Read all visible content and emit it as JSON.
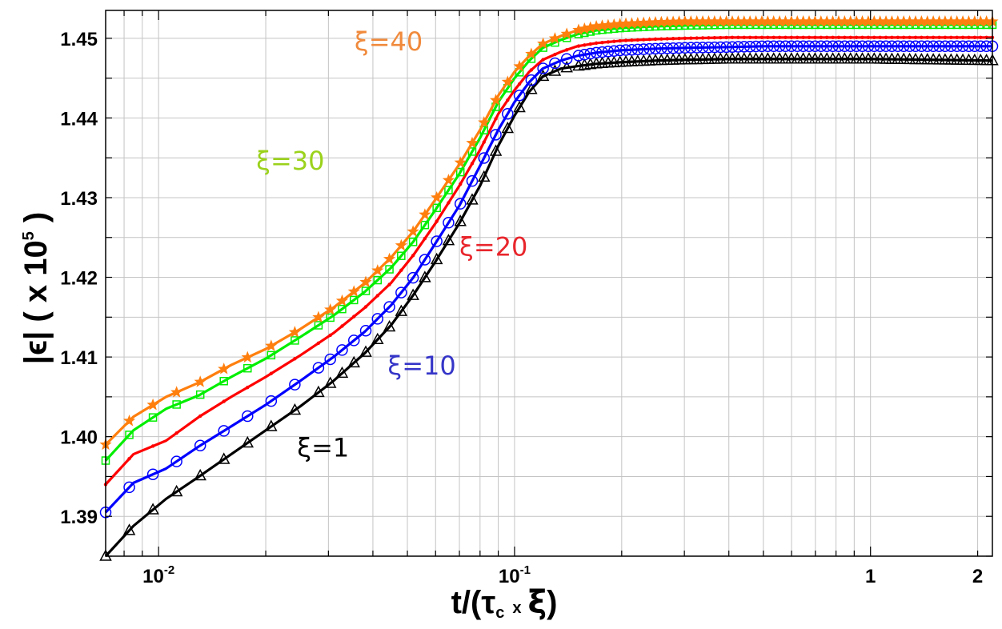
{
  "chart_data": {
    "type": "line",
    "xscale": "log",
    "xlabel": {
      "main": "t/(τ",
      "sub": "c",
      "mult": "x",
      "xi": "ξ",
      "close": ")"
    },
    "ylabel": {
      "main": "|ϵ| ( x 10",
      "sup": "5",
      "close": " )"
    },
    "xlim": [
      0.0071,
      2.2
    ],
    "ylim": [
      1.385,
      1.4535
    ],
    "xticks": [
      {
        "value": 0.01,
        "base": "10",
        "exp": "-2"
      },
      {
        "value": 0.1,
        "base": "10",
        "exp": "-1"
      },
      {
        "value": 1,
        "base": "1",
        "exp": ""
      },
      {
        "value": 2,
        "base": "2",
        "exp": ""
      }
    ],
    "yticks": [
      {
        "value": 1.39,
        "label": "1.39"
      },
      {
        "value": 1.4,
        "label": "1.40"
      },
      {
        "value": 1.41,
        "label": "1.41"
      },
      {
        "value": 1.42,
        "label": "1.42"
      },
      {
        "value": 1.43,
        "label": "1.43"
      },
      {
        "value": 1.44,
        "label": "1.44"
      },
      {
        "value": 1.45,
        "label": "1.45"
      }
    ],
    "series": [
      {
        "name": "ξ=1",
        "label": "ξ=1",
        "color": "#000000",
        "label_color": "#000000",
        "marker": "triangle",
        "label_pos": {
          "x": 0.0245,
          "y": 1.3975
        },
        "x": [
          0.0071,
          0.0085,
          0.0105,
          0.013,
          0.016,
          0.02,
          0.025,
          0.031,
          0.038,
          0.045,
          0.052,
          0.06,
          0.07,
          0.08,
          0.09,
          0.1,
          0.11,
          0.12,
          0.135,
          0.15,
          0.17,
          0.2,
          0.25,
          0.3,
          0.4,
          0.5,
          0.7,
          1.0,
          1.5,
          2.2
        ],
        "values": [
          1.385,
          1.3888,
          1.3922,
          1.395,
          1.3978,
          1.4008,
          1.4038,
          1.407,
          1.4105,
          1.414,
          1.4178,
          1.422,
          1.4268,
          1.4315,
          1.4365,
          1.4403,
          1.4433,
          1.4452,
          1.4462,
          1.4465,
          1.4468,
          1.447,
          1.4472,
          1.4473,
          1.4474,
          1.4474,
          1.4474,
          1.4474,
          1.4473,
          1.4472
        ]
      },
      {
        "name": "ξ=10",
        "label": "ξ=10",
        "color": "#0000ff",
        "label_color": "#3535c8",
        "marker": "circle",
        "label_pos": {
          "x": 0.044,
          "y": 1.4078
        },
        "x": [
          0.0071,
          0.0085,
          0.0105,
          0.013,
          0.016,
          0.02,
          0.025,
          0.031,
          0.038,
          0.045,
          0.052,
          0.06,
          0.07,
          0.08,
          0.09,
          0.1,
          0.11,
          0.12,
          0.135,
          0.15,
          0.17,
          0.2,
          0.25,
          0.3,
          0.4,
          0.5,
          0.7,
          1.0,
          1.5,
          2.2
        ],
        "values": [
          1.3905,
          1.3942,
          1.396,
          1.3988,
          1.4013,
          1.404,
          1.407,
          1.41,
          1.4132,
          1.4165,
          1.42,
          1.4243,
          1.429,
          1.434,
          1.4385,
          1.442,
          1.4445,
          1.4462,
          1.4472,
          1.4478,
          1.4482,
          1.4485,
          1.4487,
          1.4488,
          1.4489,
          1.449,
          1.449,
          1.449,
          1.449,
          1.449
        ]
      },
      {
        "name": "ξ=20",
        "label": "ξ=20",
        "color": "#ff0000",
        "label_color": "#e8262c",
        "marker": "dot",
        "label_pos": {
          "x": 0.07,
          "y": 1.4227
        },
        "x": [
          0.0071,
          0.0085,
          0.0105,
          0.013,
          0.016,
          0.02,
          0.025,
          0.031,
          0.038,
          0.045,
          0.052,
          0.06,
          0.07,
          0.08,
          0.09,
          0.1,
          0.11,
          0.12,
          0.135,
          0.15,
          0.17,
          0.2,
          0.25,
          0.3,
          0.4,
          0.5,
          0.7,
          1.0,
          1.5,
          2.2
        ],
        "values": [
          1.394,
          1.3978,
          1.3995,
          1.4025,
          1.405,
          1.4075,
          1.4102,
          1.413,
          1.4162,
          1.4193,
          1.4228,
          1.4268,
          1.4315,
          1.436,
          1.4405,
          1.4435,
          1.4458,
          1.4473,
          1.4483,
          1.449,
          1.4494,
          1.4497,
          1.4499,
          1.45,
          1.4501,
          1.4501,
          1.4501,
          1.4501,
          1.4501,
          1.4501
        ]
      },
      {
        "name": "ξ=30",
        "label": "ξ=30",
        "color": "#00ee00",
        "label_color": "#9bd21c",
        "marker": "square",
        "label_pos": {
          "x": 0.0188,
          "y": 1.4335
        },
        "x": [
          0.0071,
          0.0085,
          0.0105,
          0.013,
          0.016,
          0.02,
          0.025,
          0.031,
          0.038,
          0.045,
          0.052,
          0.06,
          0.07,
          0.08,
          0.09,
          0.1,
          0.11,
          0.12,
          0.135,
          0.15,
          0.17,
          0.2,
          0.25,
          0.3,
          0.4,
          0.5,
          0.7,
          1.0,
          1.5,
          2.2
        ],
        "values": [
          1.397,
          1.4008,
          1.4035,
          1.4052,
          1.4075,
          1.4098,
          1.4125,
          1.4152,
          1.4182,
          1.4212,
          1.4245,
          1.4285,
          1.433,
          1.4375,
          1.442,
          1.445,
          1.4472,
          1.4488,
          1.4498,
          1.4505,
          1.451,
          1.4513,
          1.4515,
          1.4516,
          1.4517,
          1.4517,
          1.4517,
          1.4517,
          1.4517,
          1.4517
        ]
      },
      {
        "name": "ξ=40",
        "label": "ξ=40",
        "color": "#ff7f0e",
        "label_color": "#f08a3c",
        "marker": "star",
        "label_pos": {
          "x": 0.0355,
          "y": 1.4485
        },
        "x": [
          0.0071,
          0.0085,
          0.0105,
          0.013,
          0.016,
          0.02,
          0.025,
          0.031,
          0.038,
          0.045,
          0.052,
          0.06,
          0.07,
          0.08,
          0.09,
          0.1,
          0.11,
          0.12,
          0.135,
          0.15,
          0.17,
          0.2,
          0.25,
          0.3,
          0.4,
          0.5,
          0.7,
          1.0,
          1.5,
          2.2
        ],
        "values": [
          1.399,
          1.4025,
          1.405,
          1.4068,
          1.409,
          1.411,
          1.4135,
          1.4162,
          1.4193,
          1.4225,
          1.4258,
          1.4298,
          1.4342,
          1.4385,
          1.4428,
          1.4458,
          1.4478,
          1.4493,
          1.4503,
          1.451,
          1.4515,
          1.4518,
          1.452,
          1.4521,
          1.4521,
          1.4521,
          1.4521,
          1.4521,
          1.4521,
          1.4521
        ]
      }
    ]
  }
}
